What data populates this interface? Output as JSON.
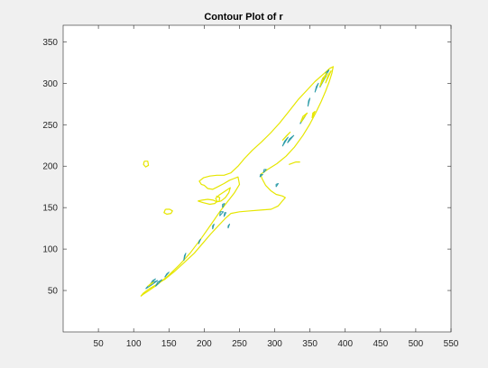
{
  "chart_data": {
    "type": "contour",
    "title": "Contour Plot of r",
    "xlabel": "",
    "ylabel": "",
    "xlim": [
      0,
      550
    ],
    "ylim": [
      0,
      370
    ],
    "xticks": [
      50,
      100,
      150,
      200,
      250,
      300,
      350,
      400,
      450,
      500,
      550
    ],
    "yticks": [
      50,
      100,
      150,
      200,
      250,
      300,
      350
    ],
    "grid": false,
    "colors": {
      "outer_contour": "#e6e600",
      "inner_contour": "#2c9ca8",
      "axes": "#262626",
      "plot_background": "#ffffff",
      "figure_background": "#f0f0f0"
    },
    "levels": [
      {
        "name": "outer",
        "color": "#e6e600",
        "paths": [
          [
            [
              110,
              43
            ],
            [
              114,
              47
            ],
            [
              122,
              52
            ],
            [
              132,
              57
            ],
            [
              145,
              64
            ],
            [
              158,
              73
            ],
            [
              172,
              84
            ],
            [
              186,
              95
            ],
            [
              198,
              107
            ],
            [
              209,
              118
            ],
            [
              220,
              128
            ],
            [
              230,
              137
            ],
            [
              238,
              143
            ],
            [
              250,
              145
            ],
            [
              265,
              146
            ],
            [
              280,
              147
            ],
            [
              295,
              148
            ],
            [
              305,
              152
            ],
            [
              311,
              158
            ],
            [
              315,
              162
            ],
            [
              311,
              164
            ],
            [
              302,
              166
            ],
            [
              295,
              170
            ],
            [
              287,
              177
            ],
            [
              282,
              185
            ],
            [
              280,
              190
            ],
            [
              290,
              196
            ],
            [
              303,
              203
            ],
            [
              316,
              212
            ],
            [
              328,
              223
            ],
            [
              340,
              237
            ],
            [
              350,
              251
            ],
            [
              358,
              264
            ],
            [
              366,
              278
            ],
            [
              372,
              290
            ],
            [
              377,
              301
            ],
            [
              381,
              312
            ],
            [
              383,
              320
            ],
            [
              378,
              318
            ],
            [
              369,
              311
            ],
            [
              357,
              302
            ],
            [
              345,
              291
            ],
            [
              333,
              280
            ],
            [
              320,
              266
            ],
            [
              307,
              252
            ],
            [
              294,
              240
            ],
            [
              281,
              229
            ],
            [
              268,
              219
            ],
            [
              257,
              209
            ],
            [
              248,
              200
            ],
            [
              238,
              192
            ],
            [
              228,
              189
            ],
            [
              218,
              189
            ],
            [
              208,
              188
            ],
            [
              199,
              186
            ],
            [
              193,
              182
            ],
            [
              196,
              178
            ],
            [
              200,
              177
            ],
            [
              205,
              173
            ],
            [
              212,
              172
            ],
            [
              219,
              175
            ],
            [
              228,
              179
            ],
            [
              236,
              183
            ],
            [
              242,
              185
            ],
            [
              248,
              187
            ],
            [
              250,
              178
            ],
            [
              243,
              168
            ],
            [
              234,
              158
            ],
            [
              222,
              145
            ],
            [
              210,
              130
            ],
            [
              196,
              113
            ],
            [
              180,
              95
            ],
            [
              165,
              81
            ],
            [
              148,
              67
            ],
            [
              132,
              56
            ],
            [
              120,
              49
            ],
            [
              113,
              45
            ],
            [
              110,
              43
            ]
          ],
          [
            [
              191,
              158
            ],
            [
              198,
              156
            ],
            [
              208,
              154
            ],
            [
              215,
              155
            ],
            [
              218,
              157
            ],
            [
              213,
              159
            ],
            [
              205,
              160
            ],
            [
              197,
              159
            ],
            [
              191,
              158
            ]
          ],
          [
            [
              216,
              161
            ],
            [
              221,
              165
            ],
            [
              230,
              170
            ],
            [
              237,
              174
            ],
            [
              235,
              168
            ],
            [
              230,
              162
            ],
            [
              224,
              158
            ],
            [
              219,
              157
            ],
            [
              216,
              161
            ]
          ],
          [
            [
              145,
              148
            ],
            [
              151,
              148
            ],
            [
              155,
              146
            ],
            [
              153,
              143
            ],
            [
              147,
              142
            ],
            [
              143,
              144
            ],
            [
              145,
              148
            ]
          ],
          [
            [
              115,
              206
            ],
            [
              120,
              206
            ],
            [
              121,
              201
            ],
            [
              117,
              199
            ],
            [
              114,
              202
            ],
            [
              115,
              206
            ]
          ],
          [
            [
              217,
              164
            ],
            [
              222,
              162
            ],
            [
              221,
              157
            ]
          ],
          [
            [
              320,
              202
            ],
            [
              330,
              205
            ],
            [
              336,
              205
            ]
          ]
        ]
      },
      {
        "name": "inner",
        "color": "#2c9ca8",
        "paths": [
          [
            [
              117,
              52
            ],
            [
              126,
              57
            ],
            [
              134,
              62
            ],
            [
              128,
              60
            ],
            [
              120,
              55
            ],
            [
              117,
              52
            ]
          ],
          [
            [
              124,
              58
            ],
            [
              131,
              64
            ],
            [
              127,
              62
            ],
            [
              124,
              58
            ]
          ],
          [
            [
              131,
              55
            ],
            [
              140,
              63
            ],
            [
              134,
              60
            ],
            [
              131,
              55
            ]
          ],
          [
            [
              144,
              66
            ],
            [
              150,
              72
            ],
            [
              147,
              70
            ],
            [
              144,
              66
            ]
          ],
          [
            [
              171,
              86
            ],
            [
              174,
              95
            ],
            [
              172,
              92
            ],
            [
              171,
              86
            ]
          ],
          [
            [
              192,
              106
            ],
            [
              195,
              112
            ],
            [
              193,
              110
            ],
            [
              192,
              106
            ]
          ],
          [
            [
              212,
              124
            ],
            [
              214,
              130
            ],
            [
              212,
              128
            ],
            [
              212,
              124
            ]
          ],
          [
            [
              222,
              140
            ],
            [
              227,
              145
            ],
            [
              223,
              145
            ],
            [
              222,
              140
            ]
          ],
          [
            [
              228,
              139
            ],
            [
              231,
              144
            ],
            [
              229,
              144
            ],
            [
              228,
              139
            ]
          ],
          [
            [
              226,
              150
            ],
            [
              229,
              155
            ],
            [
              226,
              154
            ],
            [
              226,
              150
            ]
          ],
          [
            [
              234,
              125
            ],
            [
              236,
              130
            ],
            [
              234,
              128
            ],
            [
              234,
              125
            ]
          ],
          [
            [
              279,
              187
            ],
            [
              283,
              190
            ],
            [
              280,
              190
            ],
            [
              279,
              187
            ]
          ],
          [
            [
              284,
              192
            ],
            [
              288,
              196
            ],
            [
              285,
              196
            ],
            [
              284,
              192
            ]
          ],
          [
            [
              302,
              175
            ],
            [
              305,
              179
            ],
            [
              302,
              178
            ],
            [
              302,
              175
            ]
          ],
          [
            [
              311,
              224
            ],
            [
              319,
              235
            ],
            [
              314,
              230
            ],
            [
              311,
              224
            ]
          ],
          [
            [
              318,
              228
            ],
            [
              327,
              237
            ],
            [
              321,
              233
            ],
            [
              318,
              228
            ]
          ],
          [
            [
              336,
              251
            ],
            [
              343,
              260
            ],
            [
              338,
              256
            ],
            [
              336,
              251
            ]
          ],
          [
            [
              347,
              272
            ],
            [
              350,
              282
            ],
            [
              348,
              279
            ],
            [
              347,
              272
            ]
          ],
          [
            [
              357,
              289
            ],
            [
              362,
              300
            ],
            [
              359,
              296
            ],
            [
              357,
              289
            ]
          ],
          [
            [
              364,
              295
            ],
            [
              373,
              309
            ],
            [
              367,
              304
            ],
            [
              364,
              295
            ]
          ],
          [
            [
              371,
              306
            ],
            [
              377,
              316
            ],
            [
              373,
              313
            ],
            [
              371,
              306
            ]
          ]
        ]
      },
      {
        "name": "outer-inner",
        "color": "#e6e600",
        "paths": [
          [
            [
              120,
              55
            ],
            [
              128,
              60
            ],
            [
              124,
              58
            ],
            [
              120,
              55
            ]
          ],
          [
            [
              311,
              231
            ],
            [
              322,
              241
            ],
            [
              316,
              236
            ],
            [
              311,
              231
            ]
          ],
          [
            [
              337,
              253
            ],
            [
              346,
              264
            ],
            [
              340,
              260
            ],
            [
              337,
              253
            ]
          ],
          [
            [
              353,
              258
            ],
            [
              357,
              266
            ],
            [
              354,
              264
            ],
            [
              353,
              258
            ]
          ],
          [
            [
              364,
              296
            ],
            [
              374,
              312
            ],
            [
              368,
              306
            ],
            [
              364,
              296
            ]
          ],
          [
            [
              372,
              300
            ],
            [
              380,
              315
            ],
            [
              376,
              310
            ],
            [
              372,
              300
            ]
          ]
        ]
      }
    ]
  }
}
